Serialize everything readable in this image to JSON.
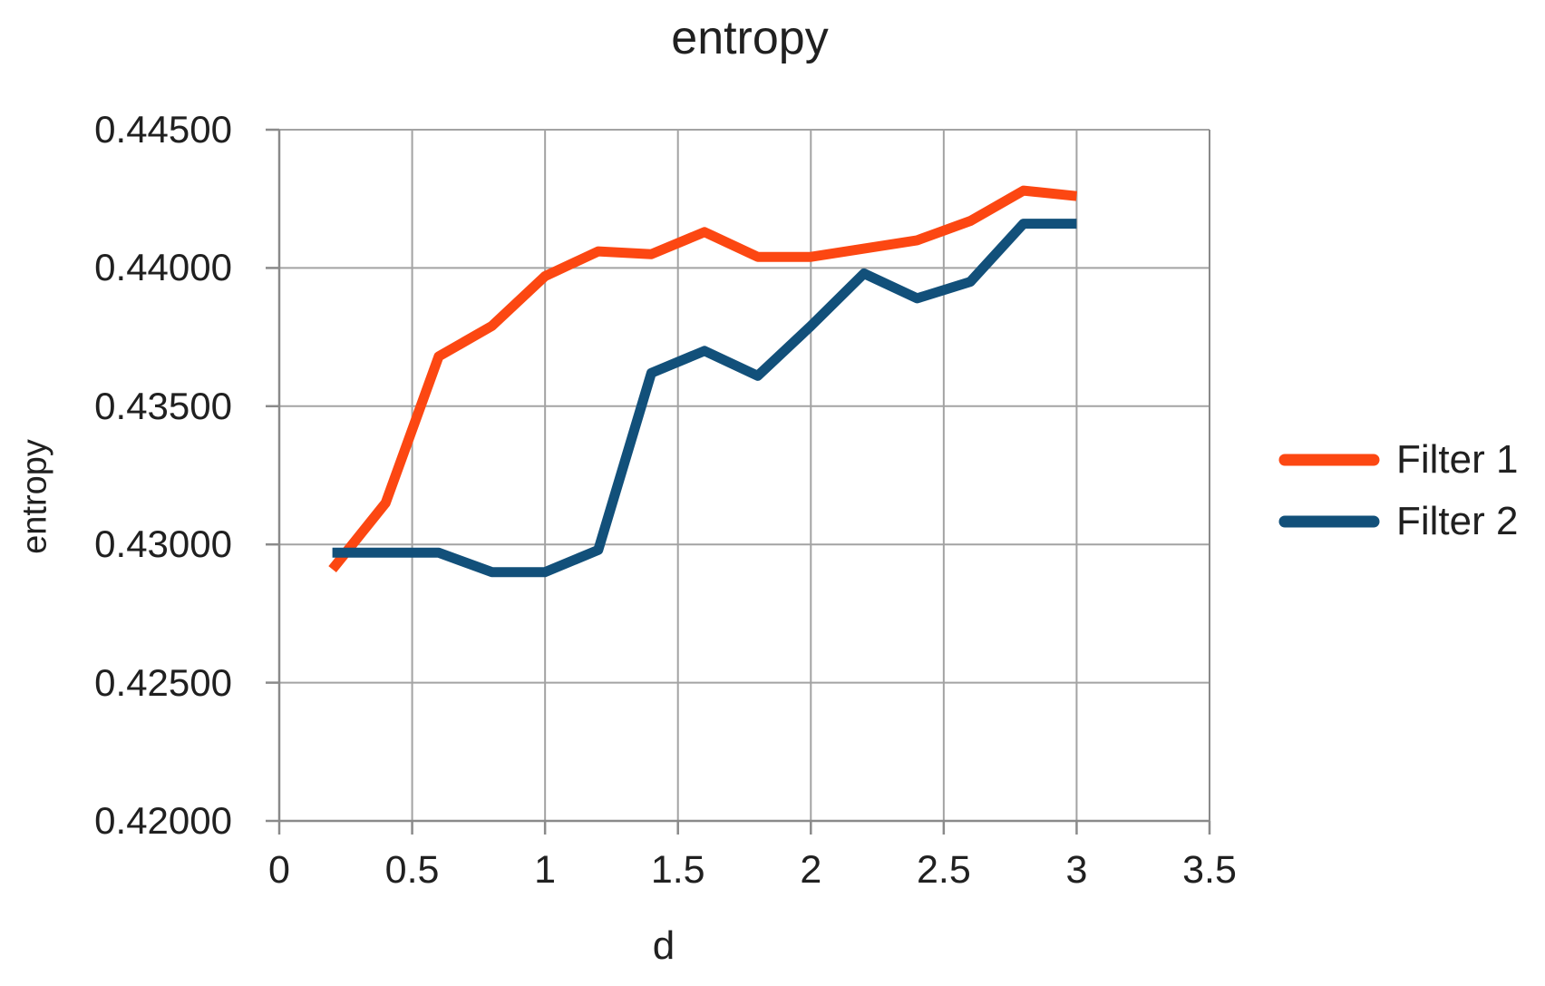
{
  "chart_data": {
    "type": "line",
    "title": "entropy",
    "xlabel": "d",
    "ylabel": "entropy",
    "xlim": [
      0,
      3.5
    ],
    "ylim": [
      0.42,
      0.445
    ],
    "grid": true,
    "legend_position": "right",
    "x_ticks": [
      0,
      0.5,
      1,
      1.5,
      2,
      2.5,
      3,
      3.5
    ],
    "x_tick_labels": [
      "0",
      "0.5",
      "1",
      "1.5",
      "2",
      "2.5",
      "3",
      "3.5"
    ],
    "y_ticks": [
      0.42,
      0.425,
      0.43,
      0.435,
      0.44,
      0.445
    ],
    "y_tick_labels": [
      "0.42000",
      "0.42500",
      "0.43000",
      "0.43500",
      "0.44000",
      "0.44500"
    ],
    "x": [
      0.2,
      0.4,
      0.6,
      0.8,
      1.0,
      1.2,
      1.4,
      1.6,
      1.8,
      2.0,
      2.2,
      2.4,
      2.6,
      2.8,
      3.0
    ],
    "series": [
      {
        "name": "Filter 1",
        "color": "#fc4712",
        "values": [
          0.4291,
          0.4315,
          0.4368,
          0.4379,
          0.4397,
          0.4406,
          0.4405,
          0.4413,
          0.4404,
          0.4404,
          0.4407,
          0.441,
          0.4417,
          0.4428,
          0.4426
        ]
      },
      {
        "name": "Filter 2",
        "color": "#12507a",
        "values": [
          0.4297,
          0.4297,
          0.4297,
          0.429,
          0.429,
          0.4298,
          0.4362,
          0.437,
          0.4361,
          0.4379,
          0.4398,
          0.4389,
          0.4395,
          0.4416,
          0.4416
        ]
      }
    ]
  },
  "colors": {
    "background": "#ffffff",
    "gridline": "#a3a3a3",
    "axis": "#8a8a8a",
    "text": "#202020"
  }
}
